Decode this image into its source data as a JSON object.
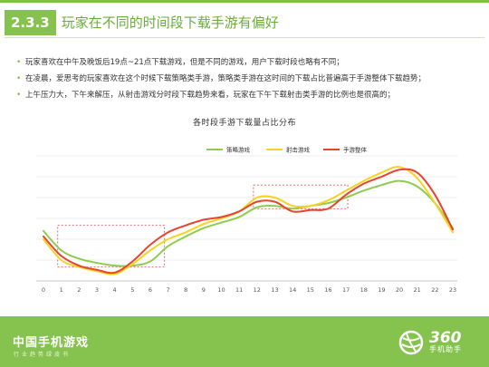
{
  "header": {
    "section_number": "2.3.3",
    "title": "玩家在不同的时间段下载手游有偏好"
  },
  "bullets": [
    "玩家喜欢在中午及晚饭后19点~21点下载游戏，但是不同的游戏，用户下载时段也略有不同；",
    "在凌晨，爱思考的玩家喜欢在这个时候下载策略类手游，策略类手游在这时间的下载占比普遍高于手游整体下载趋势；",
    "上午压力大，下午来解压，从射击游戏分时段下载趋势来看，玩家在下午下载射击类手游的比例也是很高的；"
  ],
  "footer": {
    "title": "中国手机游戏",
    "subtitle": "行业趋势绿皮书",
    "logo_number": "360",
    "logo_name": "手机助手"
  },
  "colors": {
    "accent": "#86c34e",
    "strategy": "#8fcb4f",
    "shooter": "#f5d320",
    "overall": "#e8432f",
    "highlight": "#e05a5a"
  },
  "chart_data": {
    "type": "line",
    "title": "各时段手游下载量占比分布",
    "xlabel": "",
    "ylabel": "",
    "x": [
      0,
      1,
      2,
      3,
      4,
      5,
      6,
      7,
      8,
      9,
      10,
      11,
      12,
      13,
      14,
      15,
      16,
      17,
      18,
      19,
      20,
      21,
      22,
      23
    ],
    "xlim": [
      0,
      23
    ],
    "ylim": [
      0,
      9
    ],
    "grid": "horizontal",
    "legend": "top-center",
    "series": [
      {
        "name": "策略游戏",
        "color": "#8fcb4f",
        "values": [
          3.6,
          2.2,
          1.6,
          1.3,
          1.1,
          1.1,
          1.4,
          2.5,
          3.2,
          3.8,
          4.2,
          4.6,
          5.3,
          5.4,
          5.2,
          5.4,
          5.6,
          6.0,
          6.5,
          6.9,
          7.2,
          6.8,
          5.6,
          3.8
        ]
      },
      {
        "name": "射击游戏",
        "color": "#f5d320",
        "values": [
          3.0,
          1.5,
          1.0,
          0.7,
          0.5,
          1.2,
          2.2,
          3.0,
          3.5,
          4.1,
          4.5,
          5.0,
          6.0,
          6.0,
          5.4,
          5.4,
          5.8,
          6.5,
          7.2,
          7.8,
          8.2,
          7.4,
          5.6,
          3.5
        ]
      },
      {
        "name": "手游整体",
        "color": "#e8432f",
        "values": [
          3.2,
          1.8,
          1.1,
          0.8,
          0.6,
          1.4,
          2.6,
          3.5,
          4.0,
          4.4,
          4.6,
          5.0,
          5.7,
          5.7,
          5.0,
          5.1,
          5.2,
          6.2,
          7.0,
          7.5,
          8.0,
          7.8,
          6.2,
          3.7
        ]
      }
    ],
    "highlights": [
      {
        "x": [
          0.8,
          6.8
        ],
        "y": [
          1.0,
          4.0
        ]
      },
      {
        "x": [
          11.8,
          17.1
        ],
        "y": [
          5.2,
          6.9
        ]
      }
    ]
  }
}
